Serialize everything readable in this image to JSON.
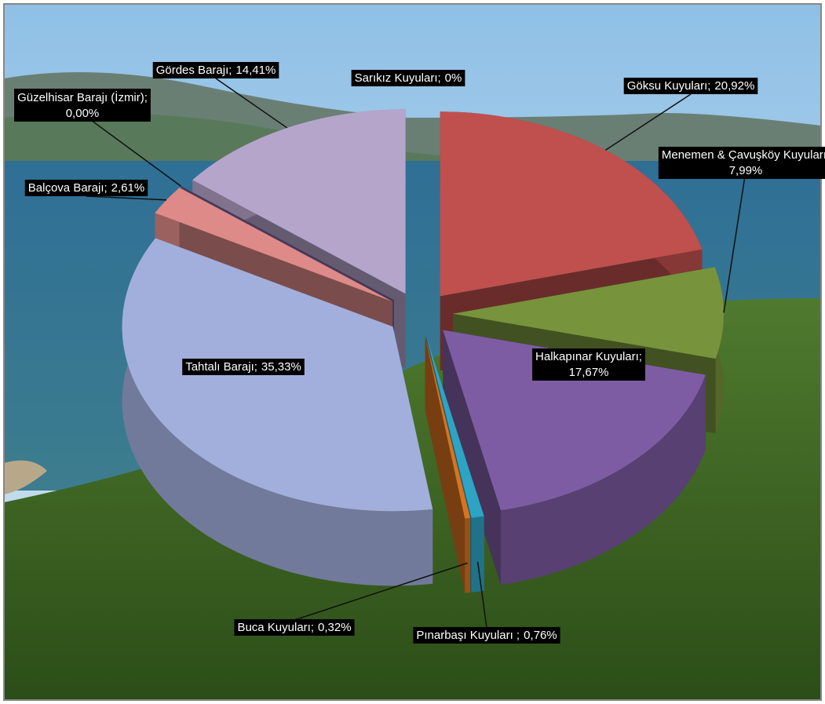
{
  "chart_data": {
    "type": "pie",
    "style": "3d-exploded",
    "categories": [
      "Göksu Kuyuları;",
      "Menemen & Çavuşköy Kuyuları;",
      "Halkapınar Kuyuları;",
      "Pınarbaşı Kuyuları ;",
      "Buca Kuyuları;",
      "Tahtalı Barajı;",
      "Balçova Barajı;",
      "Güzelhisar Barajı (İzmir);",
      "Gördes Barajı;",
      "Sarıkız Kuyuları;"
    ],
    "values": [
      20.92,
      7.99,
      17.67,
      0.76,
      0.32,
      35.33,
      2.61,
      0.0,
      14.41,
      0
    ],
    "value_labels": [
      "20,92%",
      "7,99%",
      "17,67%",
      "0,76%",
      "0,32%",
      "35,33%",
      "2,61%",
      "0,00%",
      "14,41%",
      "0%"
    ],
    "colors": [
      "#c0504d",
      "#77933c",
      "#7e5ca3",
      "#2fa3c3",
      "#d8731f",
      "#a2afdc",
      "#dd8a88",
      "#8064a2",
      "#b5a5cb",
      "#4bacc6"
    ]
  }
}
